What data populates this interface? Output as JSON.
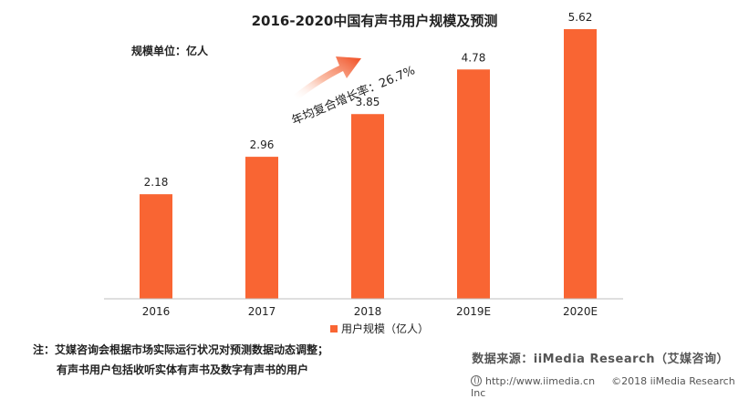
{
  "chart_data": {
    "type": "bar",
    "title": "2016-2020中国有声书用户规模及预测",
    "unit_label": "规模单位：亿人",
    "categories": [
      "2016",
      "2017",
      "2018",
      "2019E",
      "2020E"
    ],
    "series": [
      {
        "name": "用户规模（亿人）",
        "values": [
          2.18,
          2.96,
          3.85,
          4.78,
          5.62
        ]
      }
    ],
    "ylim": [
      0,
      6
    ],
    "grid": false,
    "legend_position": "bottom-center",
    "annotation": "年均复合增长率：26.7%",
    "colors": {
      "bar": "#F96533",
      "arrow": "#F04A1E",
      "axis": "#BFBFBF"
    }
  },
  "notes": {
    "line1": "注：艾媒咨询会根据市场实际运行状况对预测数据动态调整；",
    "line2": "有声书用户包括收听实体有声书及数字有声书的用户"
  },
  "source": "数据来源：iiMedia Research（艾媒咨询）",
  "footer": {
    "url": "http://www.iimedia.cn",
    "copyright": "©2018  iiMedia Research  Inc"
  }
}
